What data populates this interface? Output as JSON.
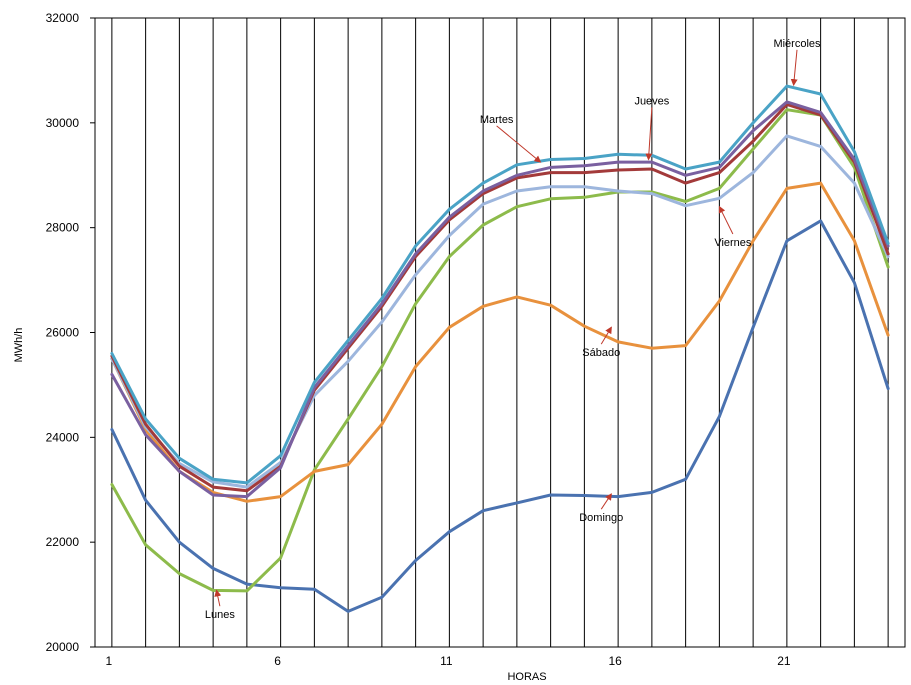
{
  "chart_data": {
    "type": "line",
    "title": "",
    "xlabel": "HORAS",
    "ylabel": "MWh/h",
    "x": [
      1,
      2,
      3,
      4,
      5,
      6,
      7,
      8,
      9,
      10,
      11,
      12,
      13,
      14,
      15,
      16,
      17,
      18,
      19,
      20,
      21,
      22,
      23,
      24
    ],
    "xlim": [
      0.5,
      24.5
    ],
    "ylim": [
      20000,
      32000
    ],
    "x_ticks": [
      1,
      6,
      11,
      16,
      21
    ],
    "x_tick_labels": [
      "1",
      "6",
      "11",
      "16",
      "21"
    ],
    "y_ticks": [
      20000,
      22000,
      24000,
      26000,
      28000,
      30000,
      32000
    ],
    "y_tick_labels": [
      "20000",
      "22000",
      "24000",
      "26000",
      "28000",
      "30000",
      "32000"
    ],
    "grid": "vertical",
    "legend": "none",
    "series": [
      {
        "name": "Domingo",
        "color": "#4a72b0",
        "values": [
          24150,
          22800,
          22000,
          21500,
          21200,
          21130,
          21100,
          20680,
          20950,
          21650,
          22200,
          22600,
          22750,
          22900,
          22890,
          22870,
          22950,
          23200,
          24400,
          26100,
          27750,
          28130,
          26950,
          24930
        ]
      },
      {
        "name": "Lunes",
        "color": "#8dbb4b",
        "values": [
          23100,
          21950,
          21400,
          21080,
          21070,
          21700,
          23380,
          24350,
          25350,
          26550,
          27450,
          28050,
          28400,
          28550,
          28580,
          28680,
          28680,
          28500,
          28750,
          29500,
          30250,
          30150,
          29150,
          27250
        ]
      },
      {
        "name": "Sábado",
        "color": "#e8913d",
        "values": [
          25500,
          24150,
          23350,
          22950,
          22780,
          22870,
          23350,
          23480,
          24250,
          25350,
          26100,
          26500,
          26680,
          26520,
          26120,
          25820,
          25700,
          25750,
          26600,
          27750,
          28750,
          28850,
          27750,
          25950
        ]
      },
      {
        "name": "Viernes",
        "color": "#9db6dd",
        "values": [
          25500,
          24200,
          23500,
          23150,
          23050,
          23520,
          24800,
          25450,
          26200,
          27100,
          27850,
          28450,
          28700,
          28780,
          28780,
          28700,
          28650,
          28420,
          28560,
          29050,
          29750,
          29550,
          28850,
          27450
        ]
      },
      {
        "name": "Martes",
        "color": "#a33a3a",
        "values": [
          25550,
          24250,
          23450,
          23050,
          22980,
          23450,
          24900,
          25700,
          26500,
          27450,
          28150,
          28650,
          28950,
          29050,
          29050,
          29100,
          29120,
          28850,
          29050,
          29650,
          30350,
          30150,
          29250,
          27500
        ]
      },
      {
        "name": "Jueves",
        "color": "#7a60a0",
        "values": [
          25200,
          24050,
          23350,
          22900,
          22870,
          23420,
          24950,
          25750,
          26550,
          27500,
          28200,
          28700,
          29000,
          29150,
          29180,
          29250,
          29250,
          29000,
          29150,
          29850,
          30400,
          30200,
          29300,
          27650
        ]
      },
      {
        "name": "Miércoles",
        "color": "#4aa3c6",
        "values": [
          25600,
          24350,
          23600,
          23200,
          23130,
          23650,
          25050,
          25850,
          26650,
          27650,
          28350,
          28850,
          29200,
          29300,
          29320,
          29400,
          29380,
          29120,
          29250,
          30000,
          30700,
          30550,
          29450,
          27700
        ]
      }
    ],
    "annotations": [
      {
        "label": "Miércoles",
        "x": 21.3,
        "y": 31450,
        "target_x": 21.2,
        "target_y": 30720
      },
      {
        "label": "Jueves",
        "x": 17.0,
        "y": 30350,
        "target_x": 16.9,
        "target_y": 29300
      },
      {
        "label": "Martes",
        "x": 12.4,
        "y": 30000,
        "target_x": 13.7,
        "target_y": 29250
      },
      {
        "label": "Viernes",
        "x": 19.4,
        "y": 27650,
        "target_x": 19.0,
        "target_y": 28400
      },
      {
        "label": "Sábado",
        "x": 15.5,
        "y": 25550,
        "target_x": 15.8,
        "target_y": 26100
      },
      {
        "label": "Domingo",
        "x": 15.5,
        "y": 22400,
        "target_x": 15.8,
        "target_y": 22920
      },
      {
        "label": "Lunes",
        "x": 4.2,
        "y": 20550,
        "target_x": 4.1,
        "target_y": 21080
      }
    ]
  }
}
